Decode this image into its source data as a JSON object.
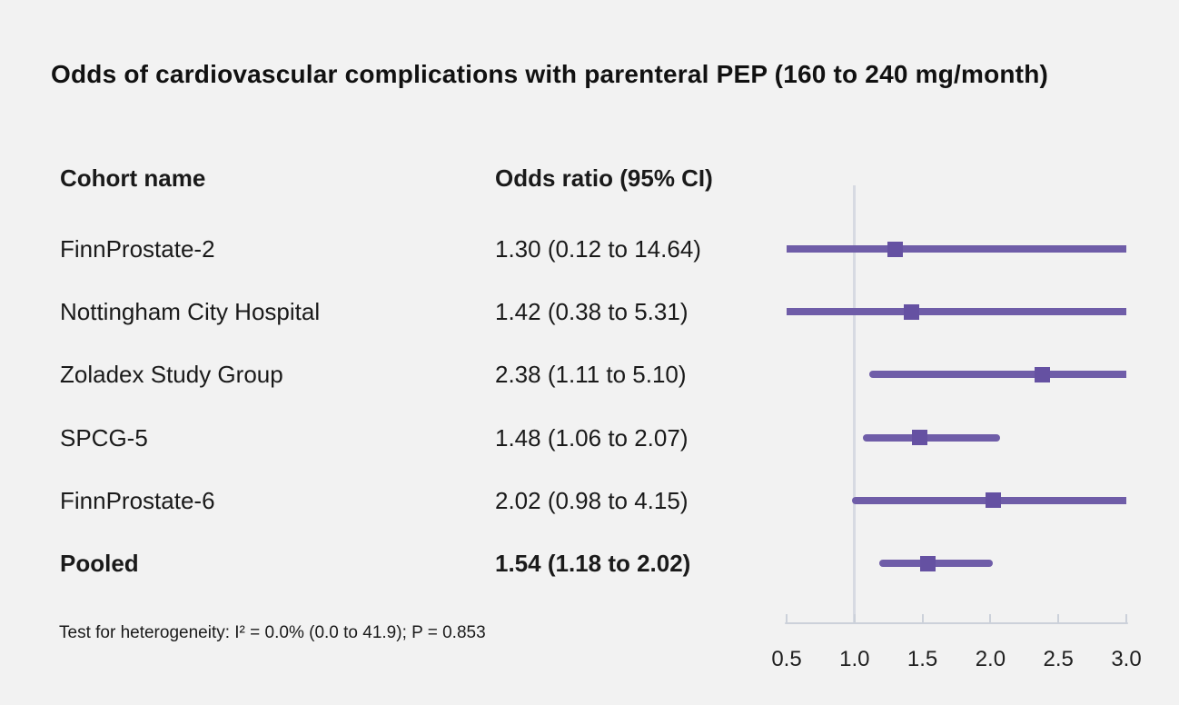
{
  "chart_data": {
    "type": "scatter",
    "subtype": "forest-plot",
    "title": "Odds of cardiovascular complications with parenteral PEP (160 to 240 mg/month)",
    "columns": [
      "Cohort name",
      "Odds ratio (95% CI)"
    ],
    "rows": [
      {
        "name": "FinnProstate-2",
        "or_label": "1.30 (0.12 to 14.64)",
        "estimate": 1.3,
        "ci_low": 0.12,
        "ci_high": 14.64,
        "pooled": false
      },
      {
        "name": "Nottingham City Hospital",
        "or_label": "1.42 (0.38 to 5.31)",
        "estimate": 1.42,
        "ci_low": 0.38,
        "ci_high": 5.31,
        "pooled": false
      },
      {
        "name": "Zoladex Study Group",
        "or_label": "2.38 (1.11 to 5.10)",
        "estimate": 2.38,
        "ci_low": 1.11,
        "ci_high": 5.1,
        "pooled": false
      },
      {
        "name": "SPCG-5",
        "or_label": "1.48 (1.06 to 2.07)",
        "estimate": 1.48,
        "ci_low": 1.06,
        "ci_high": 2.07,
        "pooled": false
      },
      {
        "name": "FinnProstate-6",
        "or_label": "2.02 (0.98 to 4.15)",
        "estimate": 2.02,
        "ci_low": 0.98,
        "ci_high": 4.15,
        "pooled": false
      },
      {
        "name": "Pooled",
        "or_label": "1.54 (1.18 to 2.02)",
        "estimate": 1.54,
        "ci_low": 1.18,
        "ci_high": 2.02,
        "pooled": true
      }
    ],
    "x_axis": {
      "scale": "linear",
      "xlim": [
        0.5,
        3.0
      ],
      "tick_values": [
        0.5,
        1.0,
        1.5,
        2.0,
        2.5,
        3.0
      ],
      "tick_labels": [
        "0.5",
        "1.0",
        "1.5",
        "2.0",
        "2.5",
        "3.0"
      ],
      "reference_line": 1.0,
      "grid": false
    },
    "footnote": "Test for heterogeneity: I² = 0.0% (0.0 to 41.9); P = 0.853",
    "colors": {
      "ci_line": "#6f5da8",
      "marker": "#6551a2",
      "reference_line": "#d7dae2",
      "axis": "#ccd1da",
      "text": "#1a1a1a",
      "background": "#f2f2f2"
    }
  }
}
